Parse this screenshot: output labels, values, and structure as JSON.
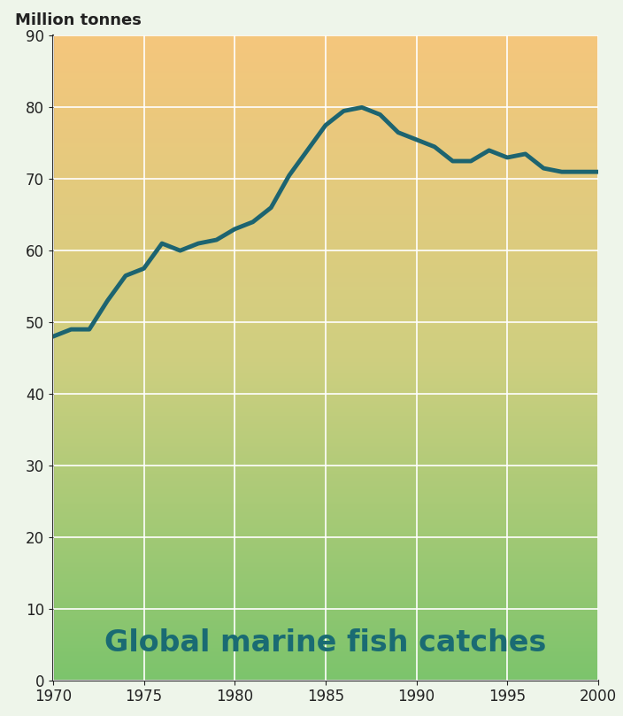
{
  "chart_data": {
    "type": "line",
    "title": "Global marine fish catches",
    "y_label": "Million tonnes",
    "x": [
      1970,
      1971,
      1972,
      1973,
      1974,
      1975,
      1976,
      1977,
      1978,
      1979,
      1980,
      1981,
      1982,
      1983,
      1984,
      1985,
      1986,
      1987,
      1988,
      1989,
      1990,
      1991,
      1992,
      1993,
      1994,
      1995,
      1996,
      1997,
      1998,
      1999,
      2000
    ],
    "values": [
      48,
      49,
      49,
      53,
      56.5,
      57.5,
      61,
      60,
      61,
      61.5,
      63,
      64,
      66,
      70.5,
      74,
      77.5,
      79.5,
      80,
      79,
      76.5,
      75.5,
      74.5,
      72.5,
      72.5,
      74,
      73,
      73.5,
      71.5,
      71,
      71,
      71
    ],
    "color": "#1d6470",
    "xlim": [
      1970,
      2000
    ],
    "xticks": [
      1970,
      1975,
      1980,
      1985,
      1990,
      1995,
      2000
    ],
    "ylim": [
      0,
      90
    ],
    "yticks": [
      0,
      10,
      20,
      30,
      40,
      50,
      60,
      70,
      80,
      90
    ],
    "grid": true
  }
}
